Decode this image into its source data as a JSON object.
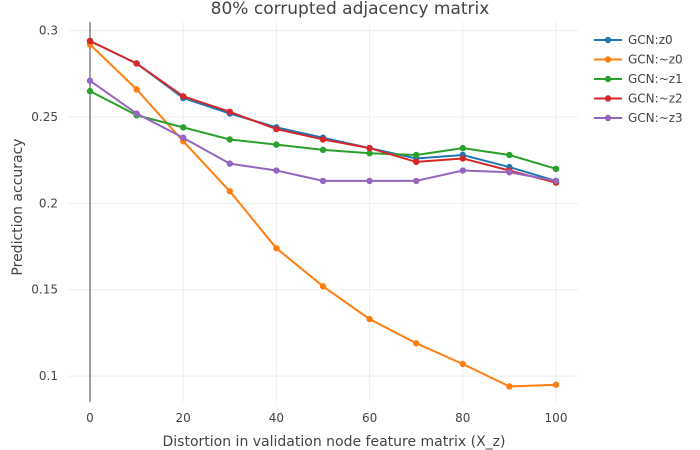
{
  "chart_data": {
    "type": "line",
    "title": "80% corrupted adjacency matrix",
    "xlabel": "Distortion in validation node feature matrix (X_z)",
    "ylabel": "Prediction accuracy",
    "xlim": [
      0,
      100
    ],
    "ylim": [
      0.085,
      0.305
    ],
    "x_ticks": [
      0,
      20,
      40,
      60,
      80,
      100
    ],
    "x_tick_labels": [
      "0",
      "20",
      "40",
      "60",
      "80",
      "100"
    ],
    "y_ticks": [
      0.1,
      0.15,
      0.2,
      0.25,
      0.3
    ],
    "y_tick_labels": [
      "0.1",
      "0.15",
      "0.2",
      "0.25",
      "0.3"
    ],
    "grid": true,
    "legend_position": "top-right",
    "x": [
      0,
      10,
      20,
      30,
      40,
      50,
      60,
      70,
      80,
      90,
      100
    ],
    "series": [
      {
        "name": "GCN:z0",
        "color": "#1f77b4",
        "values": [
          0.294,
          0.281,
          0.261,
          0.252,
          0.244,
          0.238,
          0.232,
          0.226,
          0.228,
          0.221,
          0.213
        ]
      },
      {
        "name": "GCN:~z0",
        "color": "#ff7f0e",
        "values": [
          0.292,
          0.266,
          0.236,
          0.207,
          0.174,
          0.152,
          0.133,
          0.119,
          0.107,
          0.094,
          0.095
        ]
      },
      {
        "name": "GCN:~z1",
        "color": "#2ca02c",
        "values": [
          0.265,
          0.251,
          0.244,
          0.237,
          0.234,
          0.231,
          0.229,
          0.228,
          0.232,
          0.228,
          0.22
        ]
      },
      {
        "name": "GCN:~z2",
        "color": "#d62728",
        "values": [
          0.294,
          0.281,
          0.262,
          0.253,
          0.243,
          0.237,
          0.232,
          0.224,
          0.226,
          0.219,
          0.212
        ]
      },
      {
        "name": "GCN:~z3",
        "color": "#9467bd",
        "values": [
          0.271,
          0.252,
          0.238,
          0.223,
          0.219,
          0.213,
          0.213,
          0.213,
          0.219,
          0.218,
          0.213
        ]
      }
    ]
  }
}
